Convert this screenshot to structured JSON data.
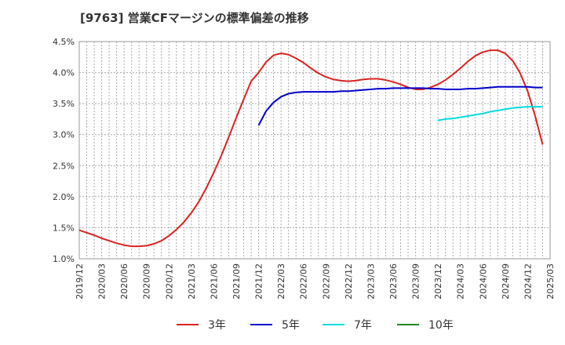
{
  "chart_data": {
    "type": "line",
    "title": "[9763]  営業CFマージンの標準偏差の推移",
    "xlabel": "",
    "ylabel": "",
    "ylim": [
      1.0,
      4.5
    ],
    "yticks": [
      "1.0%",
      "1.5%",
      "2.0%",
      "2.5%",
      "3.0%",
      "3.5%",
      "4.0%",
      "4.5%"
    ],
    "xticks": [
      "2019/12",
      "2020/03",
      "2020/06",
      "2020/09",
      "2020/12",
      "2021/03",
      "2021/06",
      "2021/09",
      "2021/12",
      "2022/03",
      "2022/06",
      "2022/09",
      "2022/12",
      "2023/03",
      "2023/06",
      "2023/09",
      "2023/12",
      "2024/03",
      "2024/06",
      "2024/09",
      "2024/12",
      "2025/03"
    ],
    "grid": true,
    "legend_position": "bottom",
    "series": [
      {
        "name": "3年",
        "color": "#dd2222",
        "points": [
          [
            "2019/12",
            1.46
          ],
          [
            "2020/01",
            1.42
          ],
          [
            "2020/02",
            1.38
          ],
          [
            "2020/03",
            1.33
          ],
          [
            "2020/04",
            1.29
          ],
          [
            "2020/05",
            1.25
          ],
          [
            "2020/06",
            1.22
          ],
          [
            "2020/07",
            1.2
          ],
          [
            "2020/08",
            1.2
          ],
          [
            "2020/09",
            1.21
          ],
          [
            "2020/10",
            1.24
          ],
          [
            "2020/11",
            1.29
          ],
          [
            "2020/12",
            1.37
          ],
          [
            "2021/01",
            1.47
          ],
          [
            "2021/02",
            1.59
          ],
          [
            "2021/03",
            1.74
          ],
          [
            "2021/04",
            1.92
          ],
          [
            "2021/05",
            2.14
          ],
          [
            "2021/06",
            2.39
          ],
          [
            "2021/07",
            2.66
          ],
          [
            "2021/08",
            2.96
          ],
          [
            "2021/09",
            3.27
          ],
          [
            "2021/10",
            3.57
          ],
          [
            "2021/11",
            3.86
          ],
          [
            "2021/12",
            4.0
          ],
          [
            "2022/01",
            4.17
          ],
          [
            "2022/02",
            4.28
          ],
          [
            "2022/03",
            4.31
          ],
          [
            "2022/04",
            4.29
          ],
          [
            "2022/05",
            4.23
          ],
          [
            "2022/06",
            4.16
          ],
          [
            "2022/07",
            4.07
          ],
          [
            "2022/08",
            3.99
          ],
          [
            "2022/09",
            3.93
          ],
          [
            "2022/10",
            3.89
          ],
          [
            "2022/11",
            3.87
          ],
          [
            "2022/12",
            3.86
          ],
          [
            "2023/01",
            3.87
          ],
          [
            "2023/02",
            3.89
          ],
          [
            "2023/03",
            3.9
          ],
          [
            "2023/04",
            3.9
          ],
          [
            "2023/05",
            3.88
          ],
          [
            "2023/06",
            3.85
          ],
          [
            "2023/07",
            3.81
          ],
          [
            "2023/08",
            3.76
          ],
          [
            "2023/09",
            3.73
          ],
          [
            "2023/10",
            3.73
          ],
          [
            "2023/11",
            3.76
          ],
          [
            "2023/12",
            3.81
          ],
          [
            "2024/01",
            3.88
          ],
          [
            "2024/02",
            3.97
          ],
          [
            "2024/03",
            4.07
          ],
          [
            "2024/04",
            4.18
          ],
          [
            "2024/05",
            4.27
          ],
          [
            "2024/06",
            4.33
          ],
          [
            "2024/07",
            4.36
          ],
          [
            "2024/08",
            4.36
          ],
          [
            "2024/09",
            4.31
          ],
          [
            "2024/10",
            4.19
          ],
          [
            "2024/11",
            3.99
          ],
          [
            "2024/12",
            3.7
          ],
          [
            "2025/01",
            3.3
          ],
          [
            "2025/02",
            2.84
          ]
        ]
      },
      {
        "name": "5年",
        "color": "#0000cc",
        "points": [
          [
            "2021/12",
            3.15
          ],
          [
            "2022/01",
            3.38
          ],
          [
            "2022/02",
            3.52
          ],
          [
            "2022/03",
            3.61
          ],
          [
            "2022/04",
            3.66
          ],
          [
            "2022/05",
            3.68
          ],
          [
            "2022/06",
            3.69
          ],
          [
            "2022/07",
            3.69
          ],
          [
            "2022/08",
            3.69
          ],
          [
            "2022/09",
            3.69
          ],
          [
            "2022/10",
            3.69
          ],
          [
            "2022/11",
            3.7
          ],
          [
            "2022/12",
            3.7
          ],
          [
            "2023/01",
            3.71
          ],
          [
            "2023/02",
            3.72
          ],
          [
            "2023/03",
            3.73
          ],
          [
            "2023/04",
            3.74
          ],
          [
            "2023/05",
            3.74
          ],
          [
            "2023/06",
            3.75
          ],
          [
            "2023/07",
            3.75
          ],
          [
            "2023/08",
            3.75
          ],
          [
            "2023/09",
            3.75
          ],
          [
            "2023/10",
            3.75
          ],
          [
            "2023/11",
            3.74
          ],
          [
            "2023/12",
            3.74
          ],
          [
            "2024/01",
            3.73
          ],
          [
            "2024/02",
            3.73
          ],
          [
            "2024/03",
            3.73
          ],
          [
            "2024/04",
            3.74
          ],
          [
            "2024/05",
            3.74
          ],
          [
            "2024/06",
            3.75
          ],
          [
            "2024/07",
            3.76
          ],
          [
            "2024/08",
            3.77
          ],
          [
            "2024/09",
            3.77
          ],
          [
            "2024/10",
            3.77
          ],
          [
            "2024/11",
            3.77
          ],
          [
            "2024/12",
            3.77
          ],
          [
            "2025/01",
            3.76
          ],
          [
            "2025/02",
            3.76
          ]
        ]
      },
      {
        "name": "7年",
        "color": "#00dddd",
        "points": [
          [
            "2023/12",
            3.23
          ],
          [
            "2024/01",
            3.25
          ],
          [
            "2024/02",
            3.26
          ],
          [
            "2024/03",
            3.28
          ],
          [
            "2024/04",
            3.3
          ],
          [
            "2024/05",
            3.32
          ],
          [
            "2024/06",
            3.34
          ],
          [
            "2024/07",
            3.37
          ],
          [
            "2024/08",
            3.39
          ],
          [
            "2024/09",
            3.41
          ],
          [
            "2024/10",
            3.43
          ],
          [
            "2024/11",
            3.44
          ],
          [
            "2024/12",
            3.45
          ],
          [
            "2025/01",
            3.45
          ],
          [
            "2025/02",
            3.45
          ]
        ]
      },
      {
        "name": "10年",
        "color": "#228822",
        "points": []
      }
    ]
  }
}
